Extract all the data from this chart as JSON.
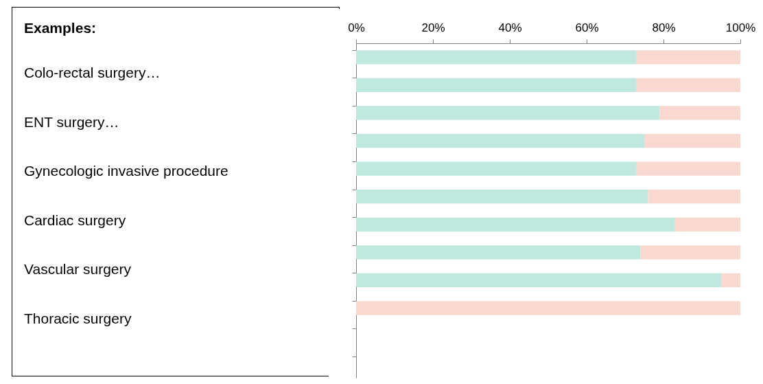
{
  "chart_data": {
    "type": "bar",
    "orientation": "horizontal",
    "stacked": true,
    "categories": [
      null,
      null,
      null,
      null,
      null,
      null,
      null,
      null,
      null,
      null,
      null,
      null
    ],
    "series": [
      {
        "color": "#bfe9de",
        "values": [
          73,
          73,
          79,
          75,
          73,
          76,
          83,
          74,
          95,
          0,
          null,
          null
        ]
      },
      {
        "color": "#fad8d2",
        "values": [
          27,
          27,
          21,
          25,
          27,
          24,
          17,
          26,
          5,
          100,
          null,
          null
        ]
      }
    ],
    "xlim": [
      0,
      100
    ],
    "xticks": [
      {
        "value": 0,
        "label": "0%"
      },
      {
        "value": 20,
        "label": "20%"
      },
      {
        "value": 40,
        "label": "40%"
      },
      {
        "value": 60,
        "label": "60%"
      },
      {
        "value": 80,
        "label": "80%"
      },
      {
        "value": 100,
        "label": "100%"
      }
    ],
    "annotations": [
      "Examples:",
      "Colo-rectal surgery…",
      "ENT surgery…",
      "Gynecologic invasive procedure",
      "Cardiac surgery",
      "Vascular surgery",
      "Thoracic surgery"
    ]
  }
}
